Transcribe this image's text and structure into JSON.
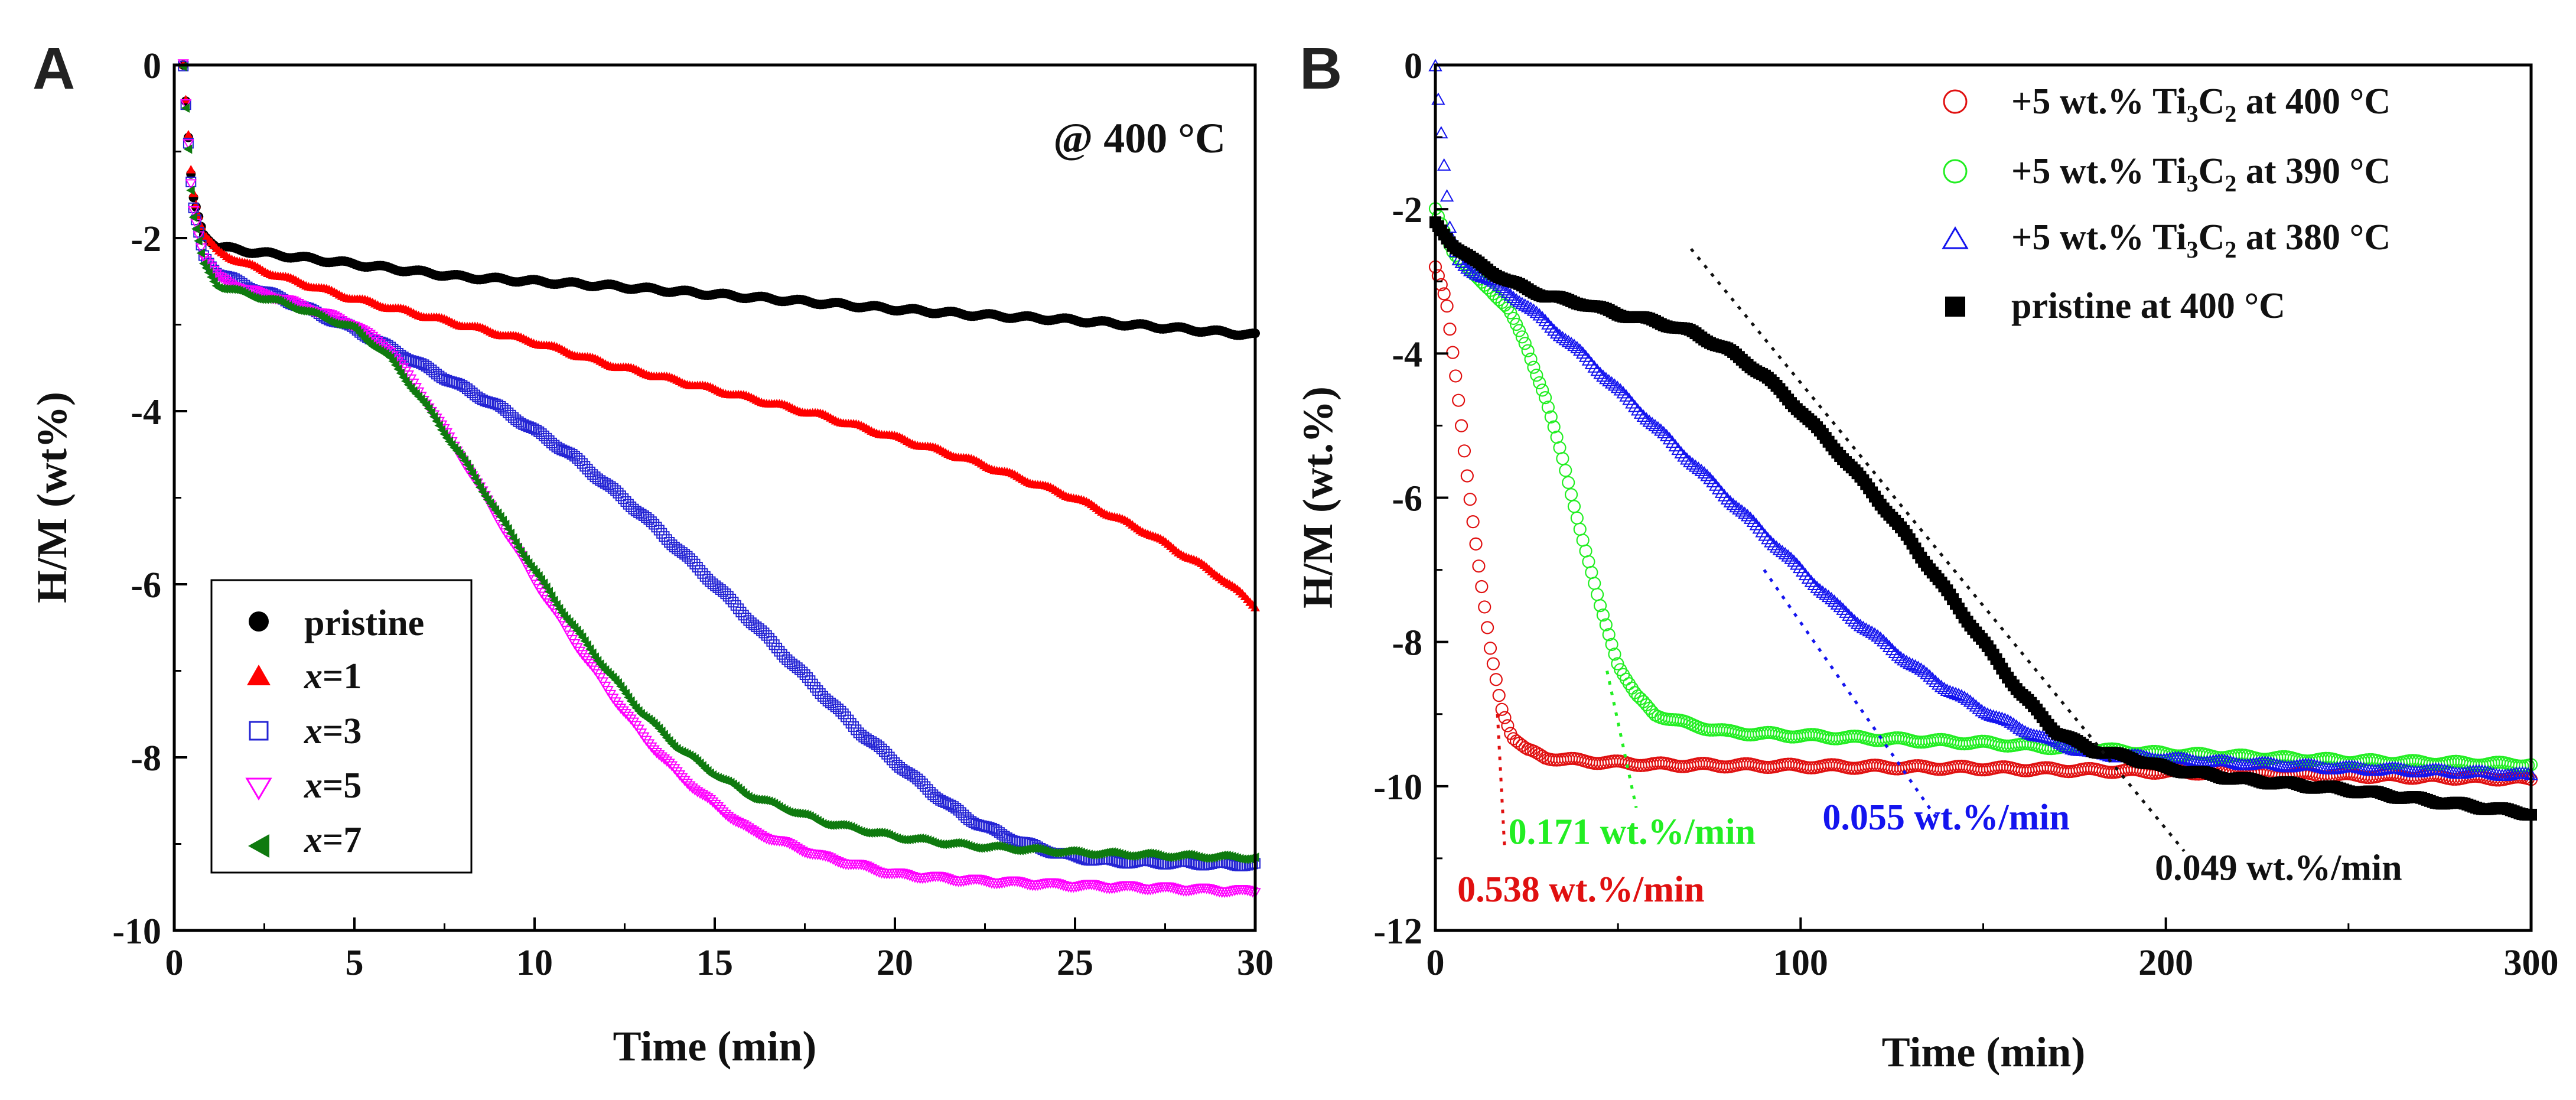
{
  "chart_data": [
    {
      "panel": "A",
      "type": "scatter",
      "title": "",
      "annotation": "@ 400 °C",
      "xlabel": "Time (min)",
      "ylabel": "H/M (wt%)",
      "xlim": [
        0,
        30
      ],
      "ylim": [
        -10,
        0
      ],
      "xticks": [
        "0",
        "5",
        "10",
        "15",
        "20",
        "25",
        "30"
      ],
      "yticks": [
        "0",
        "-2",
        "-4",
        "-6",
        "-8",
        "-10"
      ],
      "legend_position": "bottom-left",
      "series": [
        {
          "name": "pristine",
          "label_prefix": "",
          "label_value": "pristine",
          "marker": "circle-filled",
          "color": "#000000",
          "x": [
            0.25,
            0.5,
            0.8,
            1.2,
            2,
            3,
            5,
            8,
            10,
            12,
            15,
            18,
            20,
            22,
            25,
            28,
            30
          ],
          "y": [
            0,
            -1.5,
            -1.95,
            -2.1,
            -2.15,
            -2.2,
            -2.3,
            -2.45,
            -2.5,
            -2.55,
            -2.65,
            -2.75,
            -2.82,
            -2.88,
            -2.95,
            -3.05,
            -3.12
          ]
        },
        {
          "name": "x=1",
          "label_prefix": "x",
          "label_value": "=1",
          "marker": "triangle-up-filled",
          "color": "#ff0000",
          "x": [
            0.25,
            0.5,
            0.8,
            1.2,
            2,
            3,
            5,
            8,
            10,
            12,
            15,
            18,
            20,
            22,
            25,
            27,
            28,
            29,
            30
          ],
          "y": [
            0,
            -1.4,
            -1.95,
            -2.15,
            -2.3,
            -2.45,
            -2.7,
            -3.0,
            -3.2,
            -3.45,
            -3.75,
            -4.05,
            -4.3,
            -4.55,
            -5.0,
            -5.4,
            -5.65,
            -5.9,
            -6.25
          ]
        },
        {
          "name": "x=3",
          "label_prefix": "x",
          "label_value": "=3",
          "marker": "square-open",
          "color": "#2424d4",
          "x": [
            0.25,
            0.5,
            0.8,
            1.2,
            2,
            3,
            5,
            7,
            9,
            11,
            13,
            15,
            17,
            19,
            20,
            21,
            22,
            23,
            24,
            25,
            26,
            28,
            30
          ],
          "y": [
            0,
            -1.6,
            -2.2,
            -2.4,
            -2.55,
            -2.7,
            -3.05,
            -3.5,
            -3.95,
            -4.5,
            -5.2,
            -6.0,
            -6.85,
            -7.7,
            -8.05,
            -8.4,
            -8.7,
            -8.9,
            -9.05,
            -9.15,
            -9.2,
            -9.22,
            -9.24
          ]
        },
        {
          "name": "x=5",
          "label_prefix": "x",
          "label_value": "=5",
          "marker": "triangle-down-open",
          "color": "#ff00ff",
          "x": [
            0.25,
            0.5,
            0.8,
            1.2,
            2,
            3,
            5,
            6,
            7,
            8,
            9,
            10,
            11,
            12,
            13,
            14,
            15,
            16,
            18,
            20,
            22,
            25,
            28,
            30
          ],
          "y": [
            0,
            -1.6,
            -2.2,
            -2.45,
            -2.6,
            -2.7,
            -3.0,
            -3.3,
            -3.9,
            -4.55,
            -5.25,
            -5.95,
            -6.6,
            -7.2,
            -7.75,
            -8.2,
            -8.55,
            -8.85,
            -9.15,
            -9.35,
            -9.42,
            -9.48,
            -9.52,
            -9.55
          ]
        },
        {
          "name": "x=7",
          "label_prefix": "x",
          "label_value": "=7",
          "marker": "triangle-left-filled",
          "color": "#0f7a0f",
          "x": [
            0.25,
            0.5,
            0.8,
            1.2,
            2,
            3,
            5,
            6,
            7,
            8,
            9,
            10,
            11,
            12,
            13,
            14,
            15,
            16,
            18,
            20,
            22,
            25,
            28,
            30
          ],
          "y": [
            0,
            -1.7,
            -2.3,
            -2.55,
            -2.65,
            -2.75,
            -3.05,
            -3.4,
            -3.95,
            -4.55,
            -5.2,
            -5.85,
            -6.45,
            -7.0,
            -7.5,
            -7.9,
            -8.2,
            -8.45,
            -8.75,
            -8.92,
            -9.02,
            -9.1,
            -9.14,
            -9.16
          ]
        }
      ]
    },
    {
      "panel": "B",
      "type": "scatter",
      "title": "",
      "xlabel": "Time (min)",
      "ylabel": "H/M (wt.%)",
      "xlim": [
        0,
        300
      ],
      "ylim": [
        -12,
        0
      ],
      "xticks": [
        "0",
        "100",
        "200",
        "300"
      ],
      "yticks": [
        "0",
        "-2",
        "-4",
        "-6",
        "-8",
        "-10",
        "-12"
      ],
      "legend_position": "top-right",
      "series": [
        {
          "name": "+5 wt.% Ti3C2 at 400 °C",
          "label_pre": "+5 wt.% Ti",
          "label_sub1": "3",
          "label_mid": "C",
          "label_sub2": "2",
          "label_post": " at 400 °C",
          "marker": "circle-open",
          "color": "#e01010",
          "x": [
            0,
            3,
            6,
            9,
            12,
            15,
            18,
            21,
            25,
            30,
            40,
            60,
            100,
            150,
            200,
            250,
            300
          ],
          "y": [
            -2.8,
            -3.3,
            -4.5,
            -5.8,
            -7.0,
            -8.1,
            -8.9,
            -9.3,
            -9.5,
            -9.6,
            -9.65,
            -9.7,
            -9.72,
            -9.75,
            -9.8,
            -9.85,
            -9.9
          ]
        },
        {
          "name": "+5 wt.% Ti3C2 at 390 °C",
          "label_pre": "+5 wt.% Ti",
          "label_sub1": "3",
          "label_mid": "C",
          "label_sub2": "2",
          "label_post": " at 390 °C",
          "marker": "circle-open",
          "color": "#22ee22",
          "x": [
            0,
            5,
            10,
            15,
            20,
            25,
            30,
            35,
            40,
            45,
            50,
            55,
            60,
            70,
            80,
            100,
            150,
            200,
            250,
            300
          ],
          "y": [
            -2.0,
            -2.6,
            -2.9,
            -3.1,
            -3.4,
            -3.9,
            -4.6,
            -5.5,
            -6.5,
            -7.5,
            -8.3,
            -8.75,
            -9.0,
            -9.15,
            -9.25,
            -9.3,
            -9.4,
            -9.55,
            -9.65,
            -9.7
          ]
        },
        {
          "name": "+5 wt.% Ti3C2 at 380 °C",
          "label_pre": "+5 wt.% Ti",
          "label_sub1": "3",
          "label_mid": "C",
          "label_sub2": "2",
          "label_post": " at 380 °C",
          "marker": "triangle-up-open",
          "color": "#1414ee",
          "x": [
            0,
            2,
            4,
            6,
            10,
            20,
            30,
            40,
            50,
            60,
            70,
            80,
            90,
            100,
            110,
            120,
            130,
            140,
            150,
            160,
            170,
            180,
            200,
            220,
            250,
            280,
            300
          ],
          "y": [
            0,
            -1.2,
            -2.3,
            -2.7,
            -2.85,
            -3.15,
            -3.55,
            -4.0,
            -4.5,
            -5.0,
            -5.5,
            -6.0,
            -6.5,
            -7.0,
            -7.5,
            -7.9,
            -8.3,
            -8.65,
            -8.95,
            -9.2,
            -9.4,
            -9.55,
            -9.62,
            -9.68,
            -9.75,
            -9.8,
            -9.85
          ]
        },
        {
          "name": "pristine at 400 °C",
          "label_pre": "pristine at 400 °C",
          "label_sub1": "",
          "label_mid": "",
          "label_sub2": "",
          "label_post": "",
          "marker": "square-filled",
          "color": "#000000",
          "x": [
            0,
            5,
            10,
            20,
            30,
            40,
            50,
            60,
            70,
            80,
            90,
            100,
            110,
            120,
            130,
            140,
            150,
            160,
            170,
            180,
            190,
            200,
            220,
            250,
            280,
            300
          ],
          "y": [
            -2.2,
            -2.5,
            -2.7,
            -3.0,
            -3.2,
            -3.3,
            -3.45,
            -3.55,
            -3.7,
            -3.95,
            -4.3,
            -4.8,
            -5.35,
            -5.95,
            -6.6,
            -7.3,
            -8.0,
            -8.7,
            -9.25,
            -9.5,
            -9.6,
            -9.75,
            -9.9,
            -10.05,
            -10.25,
            -10.38
          ]
        }
      ],
      "annotations": [
        {
          "text": "0.538 wt.%/min",
          "color": "#e01010",
          "x": 6,
          "y": -11.6,
          "line_x": [
            17,
            19
          ],
          "line_y": [
            -9.0,
            -10.9
          ]
        },
        {
          "text": "0.171 wt.%/min",
          "color": "#22ee22",
          "x": 20,
          "y": -10.8,
          "line_x": [
            47,
            55
          ],
          "line_y": [
            -8.4,
            -10.3
          ]
        },
        {
          "text": "0.055 wt.%/min",
          "color": "#1414ee",
          "x": 106,
          "y": -10.6,
          "line_x": [
            90,
            138
          ],
          "line_y": [
            -7.0,
            -10.5
          ]
        },
        {
          "text": "0.049 wt.%/min",
          "color": "#111111",
          "x": 197,
          "y": -11.3,
          "line_x": [
            70,
            205
          ],
          "line_y": [
            -2.55,
            -10.9
          ]
        }
      ]
    }
  ]
}
